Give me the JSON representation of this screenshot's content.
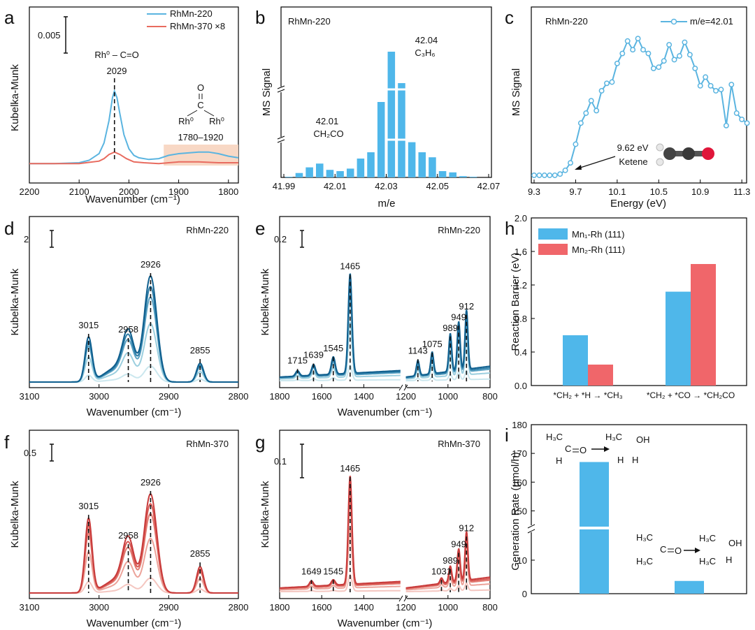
{
  "figure": {
    "common": {
      "ylabel_km": "Kubelka-Munk",
      "xlabel_wavenumber": "Wavenumber (cm⁻¹)"
    }
  },
  "chart_data": [
    {
      "panel": "a",
      "type": "line",
      "xlabel": "Wavenumber (cm⁻¹)",
      "ylabel": "Kubelka-Munk",
      "xlim": [
        2200,
        1780
      ],
      "xticks": [
        2200,
        2100,
        2000,
        1900,
        1800
      ],
      "scalebar_label": "0.005",
      "legend": [
        {
          "name": "RhMn-220",
          "color": "#5ab4e0"
        },
        {
          "name": "RhMn-370 ×8",
          "color": "#e86b5f"
        }
      ],
      "annotations": {
        "species_top": "Rh⁰ – C=O",
        "peak": "2029",
        "bridge_range": "1780–1920",
        "bridge_C": "C",
        "bridge_O": "O",
        "bridge_Rh1": "Rh⁰",
        "bridge_Rh2": "Rh⁰"
      },
      "series": [
        {
          "name": "RhMn-220",
          "color": "#5ab4e0",
          "x": [
            2200,
            2150,
            2100,
            2080,
            2060,
            2050,
            2040,
            2033,
            2029,
            2024,
            2018,
            2010,
            2000,
            1990,
            1980,
            1960,
            1940,
            1920,
            1900,
            1880,
            1860,
            1840,
            1820,
            1800,
            1780
          ],
          "y": [
            0.1,
            0.1,
            0.11,
            0.14,
            0.22,
            0.35,
            0.62,
            0.9,
            0.98,
            0.9,
            0.7,
            0.45,
            0.28,
            0.2,
            0.17,
            0.15,
            0.16,
            0.2,
            0.22,
            0.23,
            0.24,
            0.24,
            0.22,
            0.19,
            0.17
          ]
        },
        {
          "name": "RhMn-370 ×8",
          "color": "#e86b5f",
          "x": [
            2200,
            2150,
            2100,
            2060,
            2050,
            2040,
            2029,
            2018,
            2005,
            1990,
            1970,
            1940,
            1920,
            1900,
            1860,
            1820,
            1780
          ],
          "y": [
            0.1,
            0.1,
            0.1,
            0.13,
            0.16,
            0.21,
            0.24,
            0.21,
            0.16,
            0.12,
            0.11,
            0.1,
            0.11,
            0.12,
            0.12,
            0.11,
            0.11
          ]
        }
      ]
    },
    {
      "panel": "b",
      "type": "bar",
      "title": "RhMn-220",
      "xlabel": "m/e",
      "ylabel": "MS Signal",
      "xlim": [
        41.99,
        42.07
      ],
      "xticks": [
        "41.99",
        "42.01",
        "42.03",
        "42.05",
        "42.07"
      ],
      "x": [
        41.992,
        41.996,
        42.0,
        42.004,
        42.008,
        42.012,
        42.016,
        42.02,
        42.024,
        42.028,
        42.032,
        42.036,
        42.04,
        42.044,
        42.048,
        42.052,
        42.056,
        42.06,
        42.064
      ],
      "values": [
        0.005,
        0.035,
        0.08,
        0.11,
        0.06,
        0.05,
        0.07,
        0.15,
        0.2,
        0.6,
        1.0,
        0.75,
        0.28,
        0.2,
        0.16,
        0.05,
        0.04,
        0.01,
        0.005
      ],
      "annotations": {
        "left_mass": "42.01",
        "left_formula": "CH₂CO",
        "right_mass": "42.04",
        "right_formula": "C₃H₆"
      },
      "color": "#4fb7ea"
    },
    {
      "panel": "c",
      "type": "line",
      "title": "RhMn-220",
      "xlabel": "Energy (eV)",
      "ylabel": "MS Signal",
      "xlim": [
        9.3,
        11.4
      ],
      "xticks": [
        "9.3",
        "9.7",
        "10.1",
        "10.5",
        "10.9",
        "11.3"
      ],
      "legend": [
        {
          "name": "m/e=42.01",
          "color": "#5ab4e0"
        }
      ],
      "annotations": {
        "onset": "9.62 eV",
        "species": "Ketene"
      },
      "x": [
        9.3,
        9.35,
        9.4,
        9.45,
        9.5,
        9.55,
        9.6,
        9.65,
        9.7,
        9.75,
        9.8,
        9.85,
        9.9,
        9.95,
        10.0,
        10.05,
        10.1,
        10.15,
        10.2,
        10.25,
        10.3,
        10.35,
        10.4,
        10.45,
        10.5,
        10.55,
        10.6,
        10.65,
        10.7,
        10.75,
        10.8,
        10.85,
        10.9,
        10.95,
        11.0,
        11.05,
        11.1,
        11.15,
        11.2,
        11.25,
        11.3,
        11.35
      ],
      "y": [
        0.0,
        0.0,
        0.0,
        0.0,
        0.0,
        0.01,
        0.04,
        0.1,
        0.25,
        0.42,
        0.5,
        0.6,
        0.52,
        0.68,
        0.74,
        0.75,
        0.9,
        0.98,
        1.08,
        1.01,
        1.1,
        1.01,
        0.98,
        0.86,
        0.87,
        0.92,
        1.05,
        0.93,
        0.96,
        1.07,
        0.97,
        0.86,
        0.72,
        0.79,
        0.72,
        0.68,
        0.69,
        0.4,
        0.73,
        0.5,
        0.45,
        0.42
      ]
    },
    {
      "panel": "d",
      "type": "line",
      "title": "RhMn-220",
      "xlabel": "Wavenumber (cm⁻¹)",
      "ylabel": "Kubelka-Munk",
      "xlim": [
        3100,
        2800
      ],
      "xticks": [
        3100,
        3000,
        2900,
        2800
      ],
      "scalebar_label": "2",
      "peaks": [
        "3015",
        "2958",
        "2926",
        "2855"
      ],
      "peak_positions": [
        3015,
        2958,
        2926,
        2855
      ],
      "series_scales": [
        0.15,
        0.55,
        0.8,
        0.9,
        1.0
      ],
      "series_colors": [
        "#cbe7ee",
        "#9ccfdf",
        "#5ba2c3",
        "#2f7ea8",
        "#0f5f8e"
      ]
    },
    {
      "panel": "e",
      "type": "line",
      "title": "RhMn-220",
      "xlabel": "Wavenumber (cm⁻¹)",
      "ylabel": "Kubelka-Munk",
      "xlim": [
        1800,
        800
      ],
      "xticks": [
        1800,
        1600,
        1400,
        1200,
        1000,
        800
      ],
      "axis_break": true,
      "scalebar_label": "0.2",
      "peaks": [
        "1715",
        "1639",
        "1545",
        "1465",
        "1143",
        "1075",
        "989",
        "949",
        "912"
      ],
      "peak_positions": [
        1715,
        1639,
        1545,
        1465,
        1143,
        1075,
        989,
        949,
        912
      ],
      "series_scales": [
        0.15,
        0.55,
        0.8,
        0.9,
        1.0
      ],
      "series_colors": [
        "#cbe7ee",
        "#9ccfdf",
        "#5ba2c3",
        "#2f7ea8",
        "#0f5f8e"
      ]
    },
    {
      "panel": "h",
      "type": "bar",
      "ylabel": "Reaction Barrier (eV)",
      "ylim": [
        0,
        2.0
      ],
      "yticks": [
        "0.0",
        "0.4",
        "0.8",
        "1.2",
        "1.6",
        "2.0"
      ],
      "categories": [
        "*CH₂ + *H → *CH₃",
        "*CH₂ + *CO → *CH₂CO"
      ],
      "series": [
        {
          "name": "Mn₁-Rh (111)",
          "color": "#4fb7ea",
          "values": [
            0.6,
            1.12
          ]
        },
        {
          "name": "Mn₂-Rh (111)",
          "color": "#f0666a",
          "values": [
            0.25,
            1.45
          ]
        }
      ]
    },
    {
      "panel": "f",
      "type": "line",
      "title": "RhMn-370",
      "xlabel": "Wavenumber (cm⁻¹)",
      "ylabel": "Kubelka-Munk",
      "xlim": [
        3100,
        2800
      ],
      "xticks": [
        3100,
        3000,
        2900,
        2800
      ],
      "scalebar_label": "0.5",
      "peaks": [
        "3015",
        "2958",
        "2926",
        "2855"
      ],
      "peak_positions": [
        3015,
        2958,
        2926,
        2855
      ],
      "series_scales": [
        0.15,
        0.55,
        0.8,
        0.9,
        1.0
      ],
      "series_colors": [
        "#f4c6c0",
        "#eca39a",
        "#e27c73",
        "#d85a55",
        "#c83b3b"
      ]
    },
    {
      "panel": "g",
      "type": "line",
      "title": "RhMn-370",
      "xlabel": "Wavenumber (cm⁻¹)",
      "ylabel": "Kubelka-Munk",
      "xlim": [
        1800,
        800
      ],
      "xticks": [
        1800,
        1600,
        1400,
        1200,
        1000,
        800
      ],
      "axis_break": true,
      "scalebar_label": "0.1",
      "peaks": [
        "1649",
        "1545",
        "1465",
        "1031",
        "989",
        "949",
        "912"
      ],
      "peak_positions": [
        1649,
        1545,
        1465,
        1031,
        989,
        949,
        912
      ],
      "series_scales": [
        0.15,
        0.55,
        0.8,
        0.9,
        1.0
      ],
      "series_colors": [
        "#f4c6c0",
        "#eca39a",
        "#e27c73",
        "#d85a55",
        "#c83b3b"
      ]
    },
    {
      "panel": "i",
      "type": "bar",
      "ylabel": "Generation Rate (μmol/h)",
      "yticks_low": [
        "0",
        "10"
      ],
      "yticks_high": [
        "150",
        "160",
        "170",
        "180"
      ],
      "axis_break": true,
      "color": "#4fb7ea",
      "values": [
        167.0,
        3.8
      ],
      "categories": [
        "acetaldehyde → ethanol",
        "acetone → isopropanol"
      ],
      "molecule_labels": {
        "H3C": "H₃C",
        "C": "C",
        "O": "O",
        "H": "H",
        "OH": "OH"
      }
    }
  ]
}
